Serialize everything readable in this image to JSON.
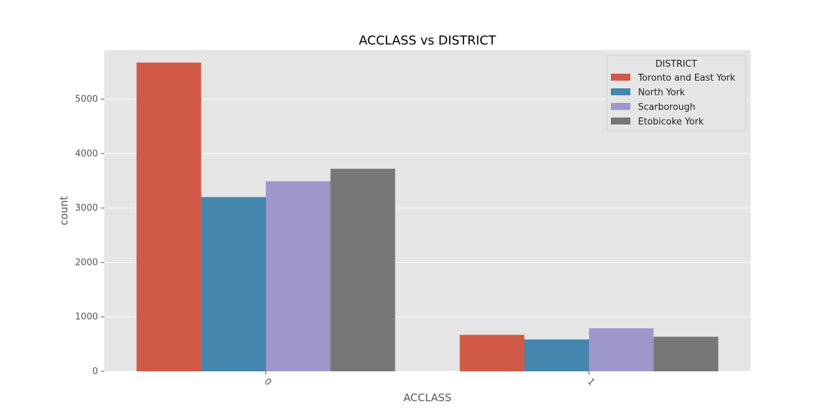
{
  "chart_data": {
    "type": "bar",
    "title": "ACCLASS vs DISTRICT",
    "xlabel": "ACCLASS",
    "ylabel": "count",
    "categories": [
      "0",
      "1"
    ],
    "ylim": [
      0,
      5900
    ],
    "yticks": [
      0,
      1000,
      2000,
      3000,
      4000,
      5000
    ],
    "grid": true,
    "legend_title": "DISTRICT",
    "legend_position": "top-right",
    "series": [
      {
        "name": "Toronto and East York",
        "color": "#d05a47",
        "values": [
          5670,
          670
        ]
      },
      {
        "name": "North York",
        "color": "#4586ae",
        "values": [
          3200,
          585
        ]
      },
      {
        "name": "Scarborough",
        "color": "#9d97cc",
        "values": [
          3490,
          790
        ]
      },
      {
        "name": "Etobicoke York",
        "color": "#777777",
        "values": [
          3720,
          635
        ]
      }
    ]
  }
}
